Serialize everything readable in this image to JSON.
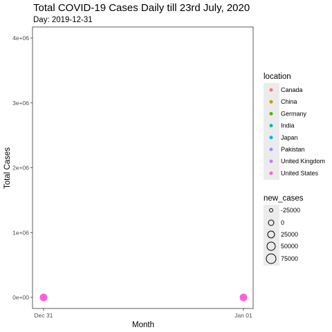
{
  "chart_data": {
    "type": "scatter",
    "title": "Total COVID-19 Cases Daily till 23rd July, 2020",
    "subtitle": "Day: 2019-12-31",
    "xlabel": "Month",
    "ylabel": "Total Cases",
    "x_ticks": [
      "Dec 31",
      "Jan 01"
    ],
    "x_range": [
      "2019-12-31",
      "2020-01-01"
    ],
    "y_ticks": [
      {
        "value": 0,
        "label": "0e+00"
      },
      {
        "value": 1000000,
        "label": "1e+06"
      },
      {
        "value": 2000000,
        "label": "2e+06"
      },
      {
        "value": 3000000,
        "label": "3e+06"
      },
      {
        "value": 4000000,
        "label": "4e+06"
      }
    ],
    "ylim": [
      0,
      4000000
    ],
    "grid": false,
    "color_legend": {
      "title": "location",
      "position": "right",
      "entries": [
        {
          "name": "Canada",
          "color": "#F8766D"
        },
        {
          "name": "China",
          "color": "#C49A00"
        },
        {
          "name": "Germany",
          "color": "#53B400"
        },
        {
          "name": "India",
          "color": "#00C094"
        },
        {
          "name": "Japan",
          "color": "#00B6EB"
        },
        {
          "name": "Pakistan",
          "color": "#A58AFF"
        },
        {
          "name": "United Kingdom",
          "color": "#C77CFF"
        },
        {
          "name": "United States",
          "color": "#FB61D7"
        }
      ]
    },
    "size_legend": {
      "title": "new_cases",
      "position": "right",
      "entries": [
        {
          "label": "-25000",
          "value": -25000
        },
        {
          "label": "0",
          "value": 0
        },
        {
          "label": "25000",
          "value": 25000
        },
        {
          "label": "50000",
          "value": 50000
        },
        {
          "label": "75000",
          "value": 75000
        }
      ]
    },
    "points": [
      {
        "x": "2019-12-31",
        "y": 0,
        "location": "United States",
        "color": "#FB61D7"
      },
      {
        "x": "2020-01-01",
        "y": 0,
        "location": "United States",
        "color": "#FB61D7"
      }
    ]
  }
}
